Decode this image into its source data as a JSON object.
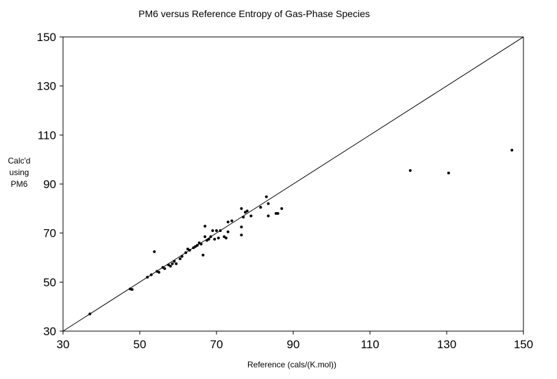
{
  "chart_data": {
    "type": "scatter",
    "title": "PM6 versus Reference Entropy of Gas-Phase Species",
    "xlabel": "Reference (cals/(K.mol))",
    "ylabel_lines": [
      "Calc'd",
      "using",
      "PM6"
    ],
    "xlim": [
      30,
      150
    ],
    "ylim": [
      30,
      150
    ],
    "x_ticks": [
      30,
      50,
      70,
      90,
      110,
      130,
      150
    ],
    "y_ticks": [
      30,
      50,
      70,
      90,
      110,
      130,
      150
    ],
    "x_tick_labels": [
      "30",
      "50",
      "70",
      "90",
      "110",
      "130",
      "150"
    ],
    "y_tick_labels": [
      "30",
      "50",
      "70",
      "90",
      "110",
      "130",
      "150"
    ],
    "grid": false,
    "legend": "none",
    "reference_line": [
      [
        30,
        30
      ],
      [
        150,
        150
      ]
    ],
    "colors": {
      "points": "#000000",
      "line": "#000000",
      "background": "#ffffff"
    },
    "points": [
      {
        "x": 37.0,
        "y": 37.0
      },
      {
        "x": 47.5,
        "y": 47.2
      },
      {
        "x": 48.0,
        "y": 47.0
      },
      {
        "x": 52.0,
        "y": 52.0
      },
      {
        "x": 53.0,
        "y": 53.0
      },
      {
        "x": 53.8,
        "y": 62.4
      },
      {
        "x": 54.5,
        "y": 54.4
      },
      {
        "x": 55.0,
        "y": 54.0
      },
      {
        "x": 56.0,
        "y": 56.0
      },
      {
        "x": 56.5,
        "y": 55.5
      },
      {
        "x": 57.5,
        "y": 57.0
      },
      {
        "x": 58.0,
        "y": 56.5
      },
      {
        "x": 58.5,
        "y": 57.5
      },
      {
        "x": 59.0,
        "y": 58.5
      },
      {
        "x": 59.5,
        "y": 57.5
      },
      {
        "x": 60.5,
        "y": 59.5
      },
      {
        "x": 61.0,
        "y": 60.5
      },
      {
        "x": 62.0,
        "y": 62.0
      },
      {
        "x": 62.5,
        "y": 63.5
      },
      {
        "x": 63.0,
        "y": 63.0
      },
      {
        "x": 64.0,
        "y": 64.0
      },
      {
        "x": 64.5,
        "y": 64.5
      },
      {
        "x": 65.0,
        "y": 65.0
      },
      {
        "x": 65.5,
        "y": 66.0
      },
      {
        "x": 66.0,
        "y": 65.5
      },
      {
        "x": 66.5,
        "y": 61.0
      },
      {
        "x": 67.0,
        "y": 68.5
      },
      {
        "x": 67.0,
        "y": 72.8
      },
      {
        "x": 67.5,
        "y": 67.0
      },
      {
        "x": 68.0,
        "y": 67.5
      },
      {
        "x": 68.5,
        "y": 68.5
      },
      {
        "x": 69.0,
        "y": 71.0
      },
      {
        "x": 69.5,
        "y": 67.5
      },
      {
        "x": 70.0,
        "y": 71.0
      },
      {
        "x": 70.5,
        "y": 68.0
      },
      {
        "x": 71.0,
        "y": 71.0
      },
      {
        "x": 72.0,
        "y": 68.5
      },
      {
        "x": 72.5,
        "y": 68.0
      },
      {
        "x": 73.0,
        "y": 70.5
      },
      {
        "x": 73.0,
        "y": 74.5
      },
      {
        "x": 74.0,
        "y": 75.0
      },
      {
        "x": 76.5,
        "y": 69.2
      },
      {
        "x": 76.5,
        "y": 72.5
      },
      {
        "x": 76.5,
        "y": 80.0
      },
      {
        "x": 77.0,
        "y": 76.5
      },
      {
        "x": 77.5,
        "y": 78.5
      },
      {
        "x": 78.0,
        "y": 79.0
      },
      {
        "x": 79.0,
        "y": 77.0
      },
      {
        "x": 81.5,
        "y": 80.5
      },
      {
        "x": 83.0,
        "y": 84.8
      },
      {
        "x": 83.5,
        "y": 77.0
      },
      {
        "x": 83.5,
        "y": 82.0
      },
      {
        "x": 85.5,
        "y": 78.0
      },
      {
        "x": 86.0,
        "y": 78.0
      },
      {
        "x": 87.0,
        "y": 80.0
      },
      {
        "x": 120.5,
        "y": 95.5
      },
      {
        "x": 130.5,
        "y": 94.5
      },
      {
        "x": 147.0,
        "y": 103.8
      }
    ]
  }
}
